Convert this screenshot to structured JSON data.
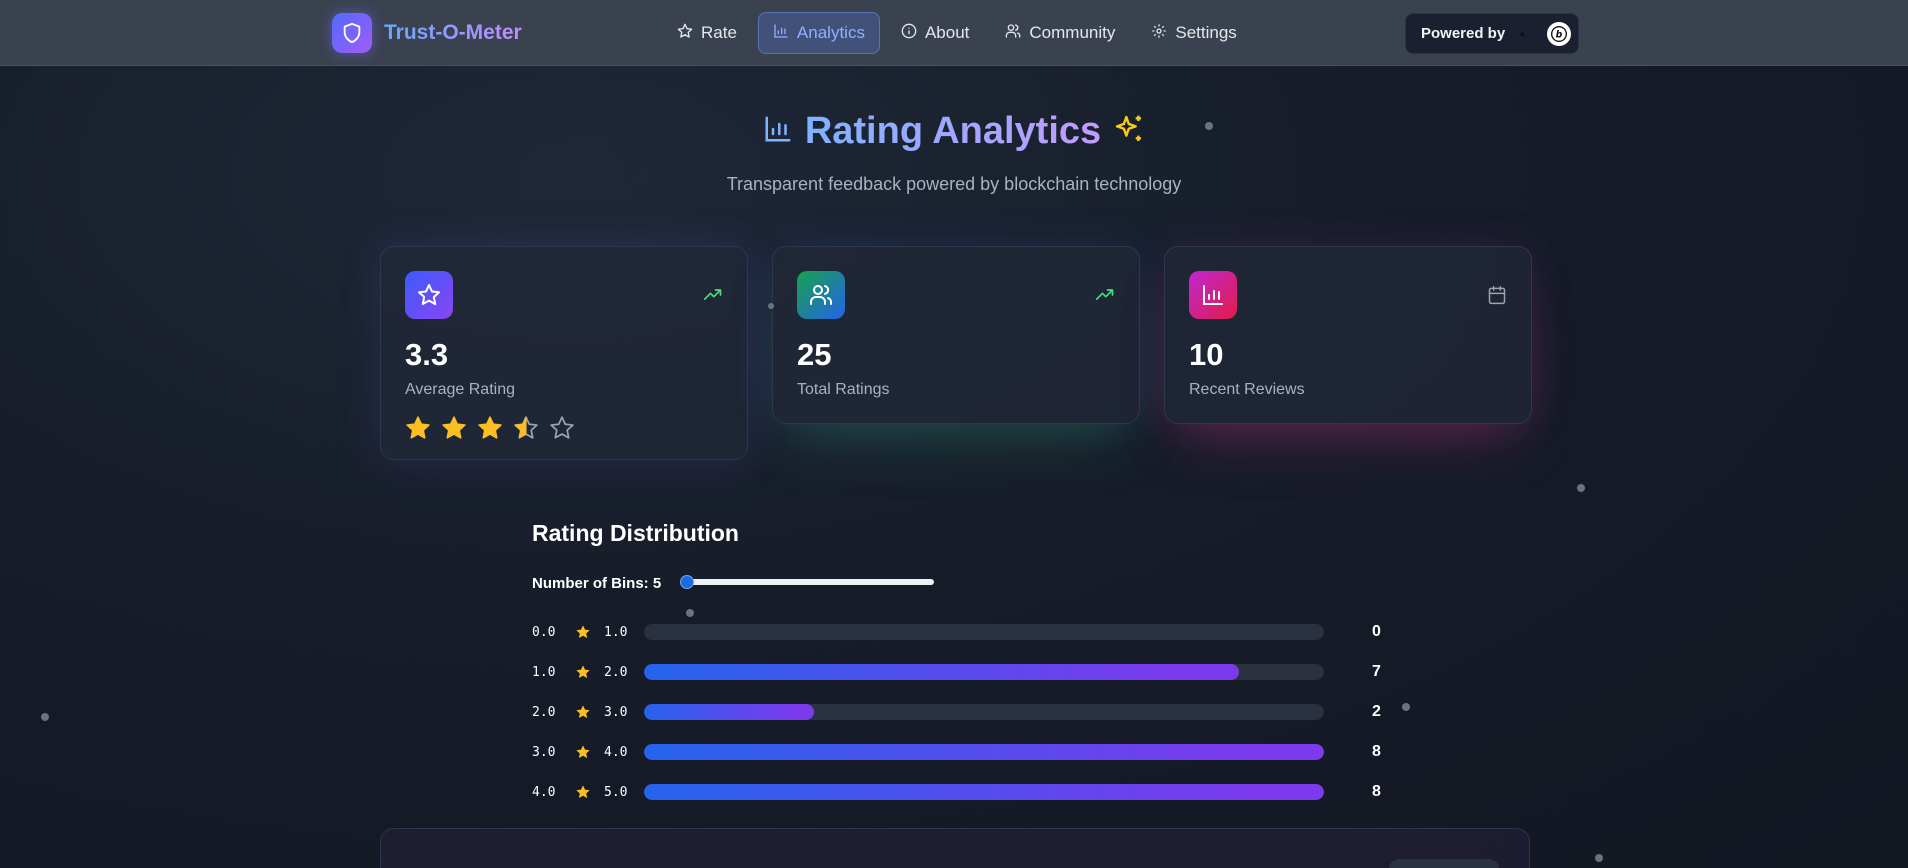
{
  "nav": {
    "brand": "Trust-O-Meter",
    "items": [
      {
        "label": "Rate",
        "icon": "star-icon"
      },
      {
        "label": "Analytics",
        "icon": "bar-chart-icon",
        "active": true
      },
      {
        "label": "About",
        "icon": "info-icon"
      },
      {
        "label": "Community",
        "icon": "users-icon"
      },
      {
        "label": "Settings",
        "icon": "gear-icon"
      }
    ],
    "powered_by": "Powered by"
  },
  "header": {
    "title": "Rating Analytics",
    "subtitle": "Transparent feedback powered by blockchain technology"
  },
  "stats": [
    {
      "value": "3.3",
      "label": "Average Rating",
      "icon": "star-icon",
      "trend_icon": "trending-up-icon",
      "rating": 3.3
    },
    {
      "value": "25",
      "label": "Total Ratings",
      "icon": "users-icon",
      "trend_icon": "trending-up-icon"
    },
    {
      "value": "10",
      "label": "Recent Reviews",
      "icon": "bar-chart-icon",
      "trend_icon": "calendar-icon"
    }
  ],
  "distribution": {
    "title": "Rating Distribution",
    "bins_label": "Number of Bins: 5",
    "bins": 5,
    "rows": [
      {
        "lo": "0.0",
        "hi": "1.0",
        "count": "0"
      },
      {
        "lo": "1.0",
        "hi": "2.0",
        "count": "7"
      },
      {
        "lo": "2.0",
        "hi": "3.0",
        "count": "2"
      },
      {
        "lo": "3.0",
        "hi": "4.0",
        "count": "8"
      },
      {
        "lo": "4.0",
        "hi": "5.0",
        "count": "8"
      }
    ]
  },
  "colors": {
    "accent_blue": "#2563eb",
    "accent_purple": "#7c3aed",
    "star": "#fbbf24",
    "trend": "#4ade80"
  }
}
